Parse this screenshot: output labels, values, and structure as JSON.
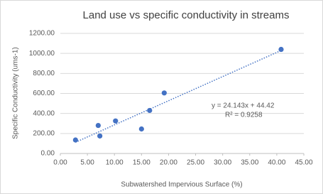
{
  "chart_data": {
    "type": "scatter",
    "title": "Land use vs specific conductivity in streams",
    "x_label": "Subwatershed Impervious Surface (%)",
    "y_label": "Specific Conductivity (ums-1)",
    "color": "#4472c4",
    "x": [
      2.8,
      7.0,
      7.3,
      10.2,
      15.0,
      16.5,
      19.2,
      40.8
    ],
    "values": [
      135,
      280,
      175,
      325,
      245,
      430,
      605,
      1040
    ],
    "xlim": [
      0,
      45
    ],
    "ylim": [
      0,
      1200
    ],
    "xticks": [
      {
        "value": 0,
        "label": "0.00"
      },
      {
        "value": 5,
        "label": "5.00"
      },
      {
        "value": 10,
        "label": "10.00"
      },
      {
        "value": 15,
        "label": "15.00"
      },
      {
        "value": 20,
        "label": "20.00"
      },
      {
        "value": 25,
        "label": "25.00"
      },
      {
        "value": 30,
        "label": "30.00"
      },
      {
        "value": 35,
        "label": "35.00"
      },
      {
        "value": 40,
        "label": "40.00"
      },
      {
        "value": 45,
        "label": "45.00"
      }
    ],
    "yticks": [
      {
        "value": 0,
        "label": "0.00"
      },
      {
        "value": 200,
        "label": "200.00"
      },
      {
        "value": 400,
        "label": "400.00"
      },
      {
        "value": 600,
        "label": "600.00"
      },
      {
        "value": 800,
        "label": "800.00"
      },
      {
        "value": 1000,
        "label": "1000.00"
      },
      {
        "value": 1200,
        "label": "1200.00"
      }
    ],
    "grid": true,
    "trendline": {
      "slope": 24.143,
      "intercept": 44.42,
      "equation_label": "y = 24.143x + 44.42",
      "r2_label": "R² = 0.9258"
    }
  }
}
